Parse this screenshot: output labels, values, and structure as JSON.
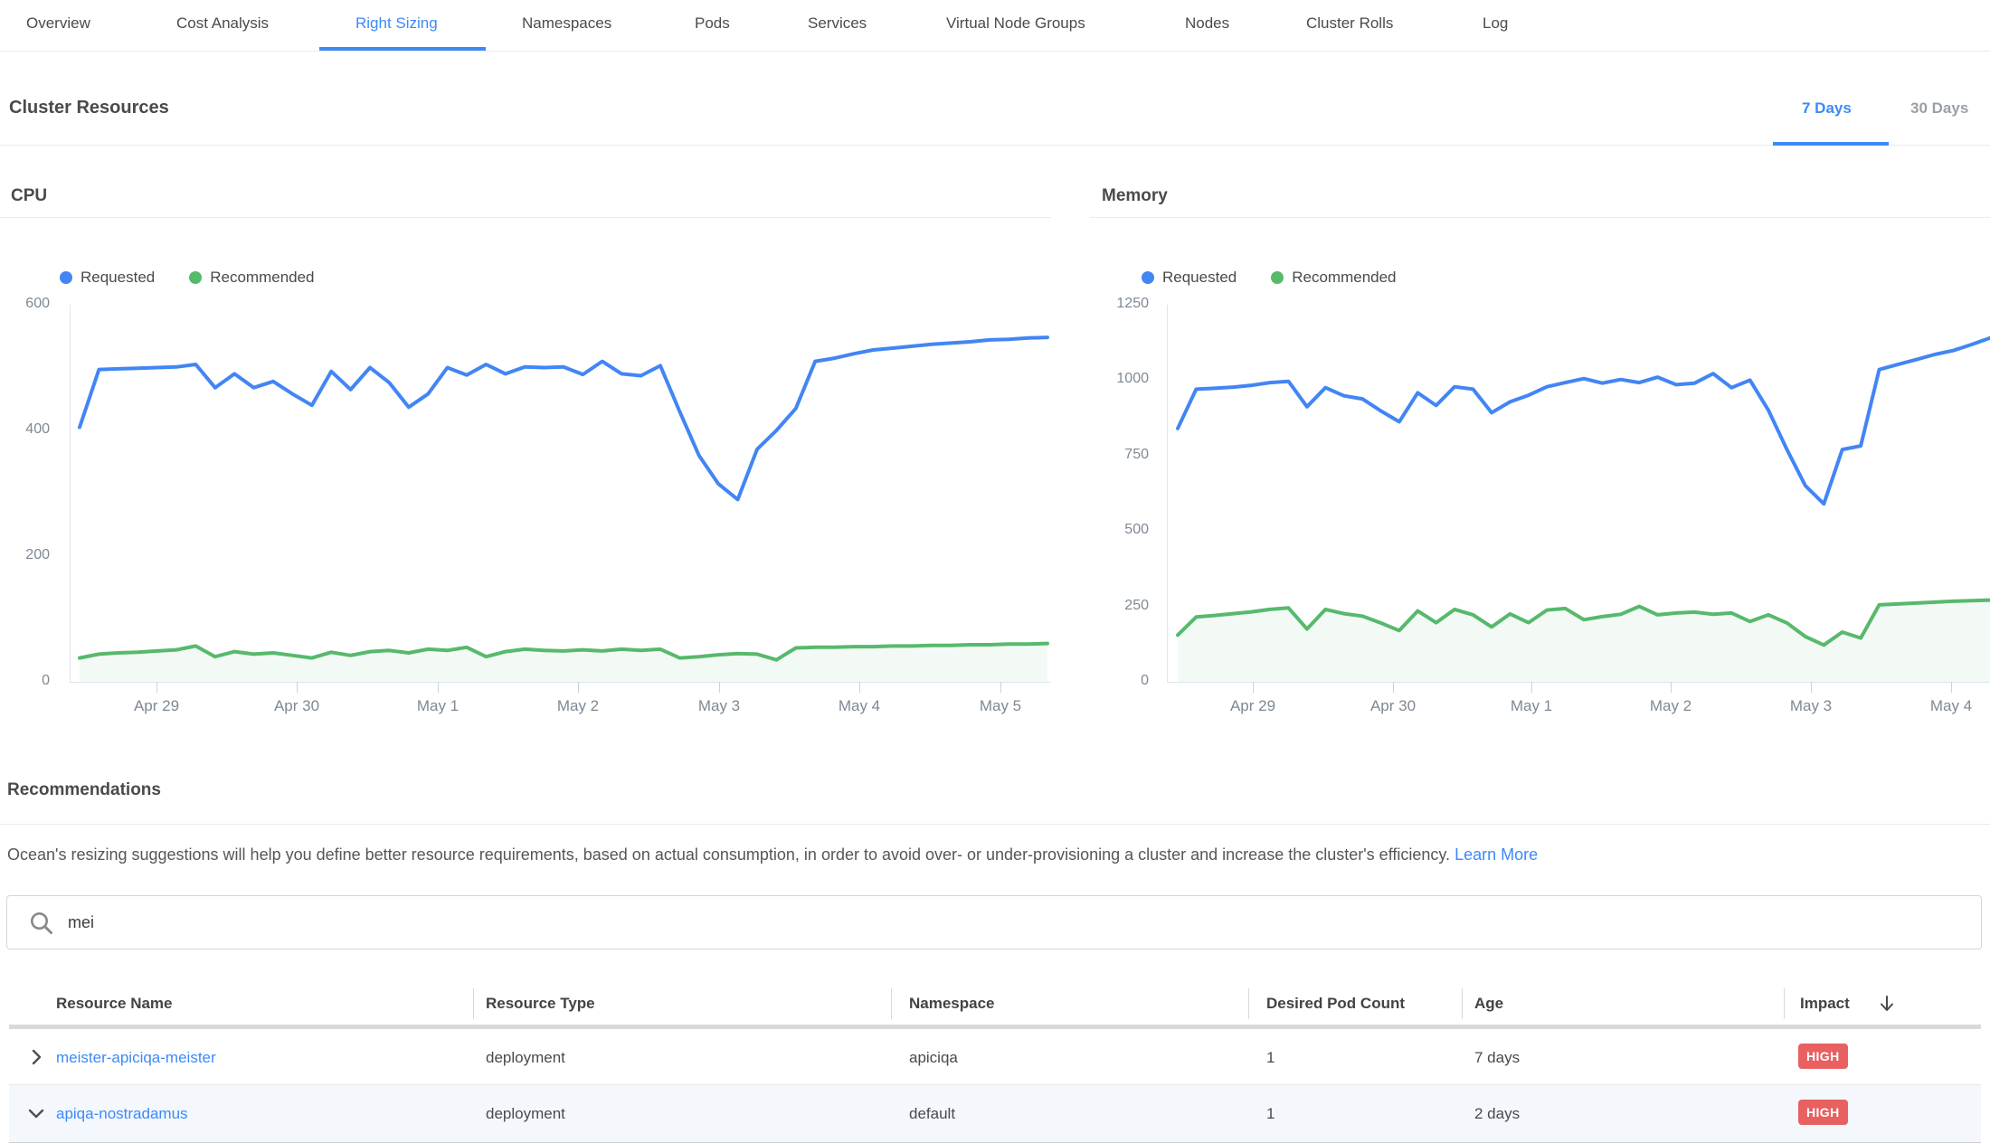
{
  "nav": {
    "active_tab": "Right Sizing",
    "tabs": [
      {
        "label": "Overview"
      },
      {
        "label": "Cost Analysis"
      },
      {
        "label": "Right Sizing"
      },
      {
        "label": "Namespaces"
      },
      {
        "label": "Pods"
      },
      {
        "label": "Services"
      },
      {
        "label": "Virtual Node Groups"
      },
      {
        "label": "Nodes"
      },
      {
        "label": "Cluster Rolls"
      },
      {
        "label": "Log"
      }
    ]
  },
  "cluster_resources": {
    "title": "Cluster Resources",
    "periods": [
      {
        "label": "7 Days",
        "active": true
      },
      {
        "label": "30 Days",
        "active": false
      }
    ]
  },
  "ui_colors": {
    "accent": "#3d8af7",
    "requested_line": "#4285f4",
    "recommended_line": "#57b96c",
    "recommended_fill": "rgba(87,185,108,0.07)",
    "impact_high": "#e86060"
  },
  "charts": {
    "legend": {
      "requested": "Requested",
      "recommended": "Recommended"
    },
    "cpu": {
      "title": "CPU",
      "type": "line",
      "ymax": 600,
      "yticks": [
        600,
        400,
        200,
        0
      ],
      "xticks": [
        "Apr 29",
        "Apr 30",
        "May 1",
        "May 2",
        "May 3",
        "May 4",
        "May 5"
      ],
      "requested": [
        405,
        497,
        498,
        499,
        500,
        501,
        505,
        468,
        490,
        468,
        478,
        458,
        440,
        494,
        465,
        500,
        476,
        437,
        458,
        500,
        488,
        505,
        490,
        501,
        500,
        501,
        489,
        510,
        490,
        487,
        503,
        430,
        360,
        315,
        290,
        370,
        400,
        435,
        510,
        515,
        522,
        528,
        531,
        534,
        537,
        539,
        541,
        544,
        545,
        547,
        548
      ],
      "recommended": [
        38,
        44,
        46,
        47,
        49,
        51,
        57,
        40,
        48,
        44,
        46,
        42,
        38,
        47,
        42,
        48,
        50,
        46,
        52,
        50,
        55,
        40,
        48,
        52,
        50,
        49,
        51,
        49,
        52,
        50,
        52,
        38,
        40,
        43,
        45,
        44,
        35,
        54,
        55,
        55,
        56,
        56,
        57,
        57,
        58,
        58,
        59,
        59,
        60,
        60,
        61
      ]
    },
    "memory": {
      "title": "Memory",
      "type": "line",
      "ymax": 1250,
      "yticks": [
        1250,
        1000,
        750,
        500,
        250,
        0
      ],
      "xticks": [
        "Apr 29",
        "Apr 30",
        "May 1",
        "May 2",
        "May 3",
        "May 4"
      ],
      "requested": [
        840,
        970,
        973,
        977,
        983,
        992,
        996,
        912,
        975,
        948,
        938,
        898,
        862,
        958,
        916,
        978,
        970,
        892,
        928,
        950,
        978,
        992,
        1005,
        990,
        1002,
        992,
        1010,
        985,
        990,
        1022,
        975,
        1000,
        900,
        770,
        650,
        590,
        770,
        782,
        1035,
        1052,
        1068,
        1085,
        1098,
        1118,
        1140
      ],
      "recommended": [
        155,
        215,
        220,
        226,
        232,
        240,
        245,
        175,
        240,
        226,
        218,
        195,
        170,
        235,
        196,
        240,
        222,
        182,
        225,
        196,
        238,
        243,
        206,
        216,
        224,
        250,
        222,
        228,
        231,
        224,
        228,
        200,
        222,
        195,
        150,
        122,
        165,
        145,
        255,
        258,
        261,
        264,
        267,
        269,
        271
      ]
    }
  },
  "recommendations": {
    "title": "Recommendations",
    "description": "Ocean's resizing suggestions will help you define better resource requirements, based on actual consumption, in order to avoid over- or under-provisioning a cluster and increase the cluster's efficiency. ",
    "learn_more": "Learn More"
  },
  "search": {
    "value": "mei"
  },
  "table": {
    "columns": [
      "Resource Name",
      "Resource Type",
      "Namespace",
      "Desired Pod Count",
      "Age",
      "Impact"
    ],
    "sort_column": "Impact",
    "sort_direction": "descending",
    "rows": [
      {
        "name": "meister-apiciqa-meister",
        "type": "deployment",
        "namespace": "apiciqa",
        "pods": "1",
        "age": "7 days",
        "impact": "HIGH",
        "expanded": false
      },
      {
        "name": "apiqa-nostradamus",
        "type": "deployment",
        "namespace": "default",
        "pods": "1",
        "age": "2 days",
        "impact": "HIGH",
        "expanded": true
      }
    ]
  }
}
